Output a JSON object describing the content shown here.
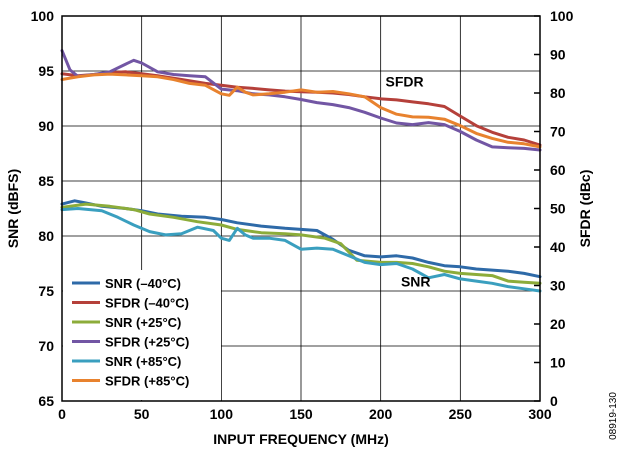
{
  "figure_id": "08919-130",
  "chart_data": {
    "type": "line",
    "xlabel": "INPUT FREQUENCY (MHz)",
    "ylabel": "SNR (dBFS)",
    "y2label": "SFDR (dBc)",
    "xlim": [
      0,
      300
    ],
    "ylim": [
      65,
      100
    ],
    "y2lim": [
      0,
      100
    ],
    "xticks": [
      0,
      50,
      100,
      150,
      200,
      250,
      300
    ],
    "yticks": [
      65,
      70,
      75,
      80,
      85,
      90,
      95,
      100
    ],
    "y2ticks": [
      0,
      10,
      20,
      30,
      40,
      50,
      60,
      70,
      80,
      90,
      100
    ],
    "grid": true,
    "legend_position": "bottom-left",
    "annotations": [
      {
        "text": "SFDR",
        "x": 215,
        "y": 93.6
      },
      {
        "text": "SNR",
        "x": 222,
        "y": 75.4
      }
    ],
    "series": [
      {
        "name": "SNR (–40°C)",
        "axis": "left",
        "color": "#2e6aa8",
        "x": [
          0,
          8,
          15,
          25,
          40,
          50,
          60,
          75,
          90,
          100,
          110,
          125,
          140,
          150,
          160,
          170,
          180,
          190,
          200,
          210,
          220,
          230,
          240,
          250,
          260,
          270,
          280,
          290,
          300
        ],
        "y": [
          82.9,
          83.2,
          83.0,
          82.7,
          82.5,
          82.3,
          82.0,
          81.8,
          81.7,
          81.5,
          81.2,
          80.9,
          80.7,
          80.6,
          80.5,
          79.7,
          78.7,
          78.2,
          78.1,
          78.2,
          78.0,
          77.6,
          77.3,
          77.2,
          77.0,
          76.9,
          76.8,
          76.6,
          76.3
        ]
      },
      {
        "name": "SFDR (–40°C)",
        "axis": "right",
        "color": "#b5403a",
        "x": [
          0,
          10,
          20,
          30,
          40,
          50,
          60,
          75,
          90,
          100,
          110,
          120,
          130,
          140,
          150,
          160,
          170,
          180,
          190,
          200,
          210,
          220,
          230,
          240,
          250,
          260,
          270,
          280,
          290,
          300
        ],
        "y": [
          85,
          84.5,
          84.8,
          85.3,
          85.5,
          85,
          84.5,
          83.5,
          82.5,
          82,
          81.5,
          81.2,
          80.8,
          80.5,
          80.3,
          80.2,
          80.0,
          79.6,
          79,
          78.5,
          78.2,
          77.7,
          77.2,
          76.5,
          74,
          71.5,
          69.8,
          68.5,
          67.8,
          66.5
        ]
      },
      {
        "name": "SNR (+25°C)",
        "axis": "left",
        "color": "#8cac3a",
        "x": [
          0,
          15,
          30,
          45,
          55,
          70,
          85,
          100,
          110,
          125,
          140,
          150,
          165,
          175,
          185,
          200,
          210,
          220,
          230,
          240,
          250,
          260,
          270,
          280,
          290,
          300
        ],
        "y": [
          82.6,
          82.9,
          82.7,
          82.4,
          82.0,
          81.7,
          81.3,
          81.0,
          80.6,
          80.3,
          80.2,
          80.1,
          79.8,
          79.3,
          77.8,
          77.6,
          77.6,
          77.5,
          77.2,
          76.8,
          76.6,
          76.5,
          76.4,
          75.9,
          75.8,
          75.7
        ]
      },
      {
        "name": "SFDR (+25°C)",
        "axis": "right",
        "color": "#7256a4",
        "x": [
          0,
          5,
          10,
          20,
          30,
          40,
          45,
          50,
          60,
          70,
          80,
          90,
          100,
          110,
          120,
          130,
          140,
          150,
          160,
          170,
          180,
          190,
          200,
          210,
          220,
          230,
          240,
          250,
          260,
          270,
          280,
          290,
          300
        ],
        "y": [
          91,
          86,
          84.3,
          84.8,
          85.5,
          87.5,
          88.5,
          87.8,
          85.5,
          84.8,
          84.5,
          84.2,
          81,
          80.6,
          79.8,
          79.5,
          79,
          78.3,
          77.5,
          77,
          76.2,
          75,
          73.5,
          72.2,
          71.8,
          72.3,
          71.8,
          70,
          67.8,
          66,
          65.8,
          65.6,
          65.2
        ]
      },
      {
        "name": "SNR (+85°C)",
        "axis": "left",
        "color": "#3a9fbf",
        "x": [
          0,
          10,
          25,
          35,
          45,
          55,
          65,
          75,
          85,
          95,
          100,
          105,
          110,
          115,
          120,
          130,
          140,
          150,
          160,
          170,
          180,
          190,
          200,
          210,
          220,
          230,
          240,
          250,
          260,
          270,
          280,
          290,
          300
        ],
        "y": [
          82.4,
          82.5,
          82.3,
          81.7,
          81.0,
          80.4,
          80.1,
          80.2,
          80.8,
          80.5,
          79.8,
          79.6,
          80.7,
          80.1,
          79.8,
          79.8,
          79.6,
          78.8,
          78.9,
          78.8,
          78.2,
          77.6,
          77.4,
          77.5,
          77.0,
          76.2,
          76.5,
          76.1,
          75.9,
          75.7,
          75.4,
          75.2,
          75.0
        ]
      },
      {
        "name": "SFDR (+85°C)",
        "axis": "right",
        "color": "#e8822e",
        "x": [
          0,
          10,
          20,
          30,
          40,
          50,
          60,
          70,
          80,
          90,
          100,
          105,
          110,
          115,
          120,
          130,
          140,
          150,
          160,
          170,
          180,
          190,
          200,
          210,
          220,
          230,
          240,
          250,
          260,
          270,
          280,
          290,
          300
        ],
        "y": [
          83.5,
          84.2,
          84.7,
          84.9,
          84.7,
          84.5,
          84.2,
          83.5,
          82.5,
          82,
          79.8,
          79.4,
          81.5,
          80.2,
          79.5,
          79.8,
          80.2,
          80.8,
          80.2,
          80.4,
          79.8,
          79,
          76.2,
          74.5,
          73.8,
          73.7,
          73.2,
          71.5,
          69.5,
          68.2,
          67.2,
          66.8,
          66
        ]
      }
    ]
  }
}
